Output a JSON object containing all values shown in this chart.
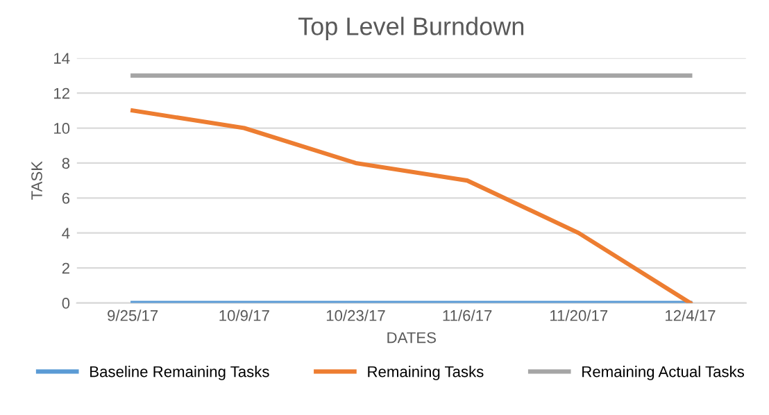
{
  "chart_data": {
    "type": "line",
    "title": "Top Level Burndown",
    "xlabel": "DATES",
    "ylabel": "TASK",
    "categories": [
      "9/25/17",
      "10/9/17",
      "10/23/17",
      "11/6/17",
      "11/20/17",
      "12/4/17"
    ],
    "series": [
      {
        "name": "Baseline Remaining Tasks",
        "color": "#5b9bd5",
        "values": [
          0,
          0,
          0,
          0,
          0,
          0
        ]
      },
      {
        "name": "Remaining Tasks",
        "color": "#ed7d31",
        "values": [
          11,
          10,
          8,
          7,
          4,
          0
        ]
      },
      {
        "name": "Remaining Actual Tasks",
        "color": "#a5a5a5",
        "values": [
          13,
          13,
          13,
          13,
          13,
          13
        ]
      }
    ],
    "ylim": [
      0,
      14
    ],
    "yticks": [
      0,
      2,
      4,
      6,
      8,
      10,
      12,
      14
    ],
    "grid": "y",
    "legend": "bottom",
    "marker": "none",
    "line_style": "solid"
  }
}
